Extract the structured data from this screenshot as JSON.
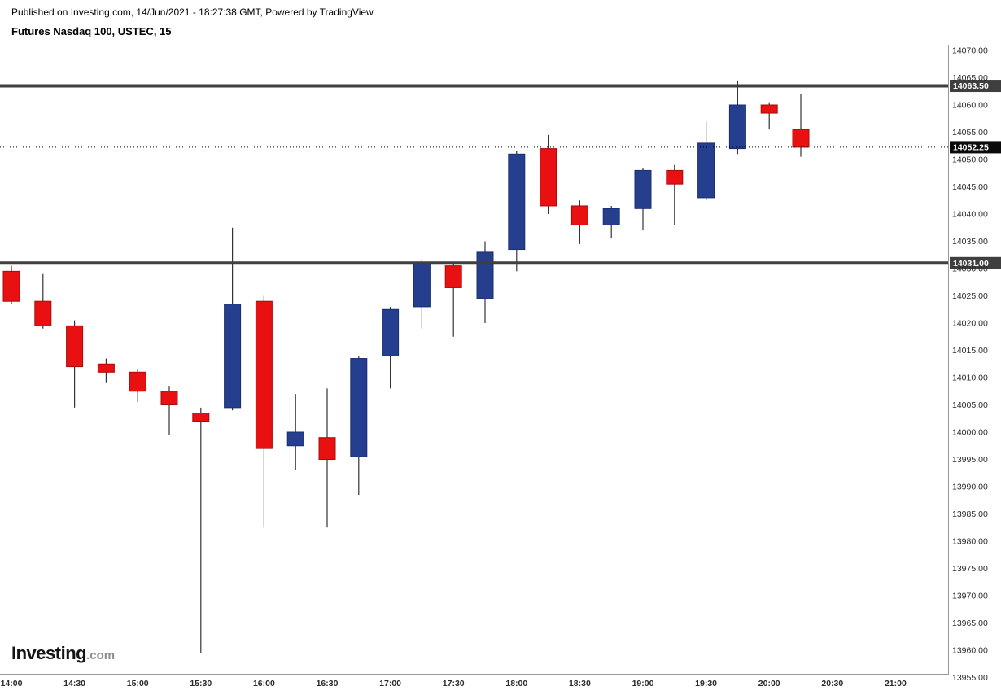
{
  "header": {
    "attribution": "Published on Investing.com, 14/Jun/2021 - 18:27:38 GMT, Powered by TradingView.",
    "instrument_title": "Futures Nasdaq 100, USTEC, 15"
  },
  "logo": {
    "name": "Investing",
    "suffix": ".com"
  },
  "colors": {
    "up": "#253e8e",
    "up_border": "#1b2f6e",
    "down": "#e81010",
    "down_border": "#a80b0b",
    "wick": "#333333",
    "hline": "#3f3f3f",
    "badge_bg": "#3f3f3f",
    "current_badge_bg": "#0a0a0a",
    "badge_text": "#ffffff",
    "axis_line": "#999999",
    "axis_text": "#2b2b2b"
  },
  "chart_data": {
    "type": "candlestick",
    "title": "Futures Nasdaq 100, USTEC, 15",
    "instrument_name": "Futures Nasdaq 100",
    "symbol": "USTEC",
    "interval": "15",
    "interval_minutes": 15,
    "y_axis": {
      "min": 13955,
      "max": 14070,
      "step": 5,
      "format_decimals": 2
    },
    "x_ticks": [
      "14:00",
      "14:30",
      "15:00",
      "15:30",
      "16:00",
      "16:30",
      "17:00",
      "17:30",
      "18:00",
      "18:30",
      "19:00",
      "19:30",
      "20:00",
      "20:30",
      "21:00"
    ],
    "horizontal_lines": [
      {
        "price": 14063.5,
        "label": "14063.50"
      },
      {
        "price": 14031.0,
        "label": "14031.00"
      }
    ],
    "current_price": {
      "price": 14052.25,
      "label": "14052.25"
    },
    "candles": [
      {
        "time": "14:00",
        "open": 14029.5,
        "high": 14030.5,
        "low": 14023.5,
        "close": 14024.0
      },
      {
        "time": "14:15",
        "open": 14024.0,
        "high": 14029.0,
        "low": 14019.0,
        "close": 14019.5
      },
      {
        "time": "14:30",
        "open": 14019.5,
        "high": 14020.5,
        "low": 14004.5,
        "close": 14012.0
      },
      {
        "time": "14:45",
        "open": 14012.5,
        "high": 14013.5,
        "low": 14009.0,
        "close": 14011.0
      },
      {
        "time": "15:00",
        "open": 14011.0,
        "high": 14011.5,
        "low": 14005.5,
        "close": 14007.5
      },
      {
        "time": "15:15",
        "open": 14007.5,
        "high": 14008.5,
        "low": 13999.5,
        "close": 14005.0
      },
      {
        "time": "15:30",
        "open": 14003.5,
        "high": 14004.5,
        "low": 13959.5,
        "close": 14002.0
      },
      {
        "time": "15:45",
        "open": 14004.5,
        "high": 14037.5,
        "low": 14004.0,
        "close": 14023.5
      },
      {
        "time": "16:00",
        "open": 14024.0,
        "high": 14025.0,
        "low": 13982.5,
        "close": 13997.0
      },
      {
        "time": "16:15",
        "open": 13997.5,
        "high": 14007.0,
        "low": 13993.0,
        "close": 14000.0
      },
      {
        "time": "16:30",
        "open": 13999.0,
        "high": 14008.0,
        "low": 13982.5,
        "close": 13995.0
      },
      {
        "time": "16:45",
        "open": 13995.5,
        "high": 14014.0,
        "low": 13988.5,
        "close": 14013.5
      },
      {
        "time": "17:00",
        "open": 14014.0,
        "high": 14023.0,
        "low": 14008.0,
        "close": 14022.5
      },
      {
        "time": "17:15",
        "open": 14023.0,
        "high": 14031.5,
        "low": 14019.0,
        "close": 14031.0
      },
      {
        "time": "17:30",
        "open": 14030.5,
        "high": 14031.0,
        "low": 14017.5,
        "close": 14026.5
      },
      {
        "time": "17:45",
        "open": 14024.5,
        "high": 14035.0,
        "low": 14020.0,
        "close": 14033.0
      },
      {
        "time": "18:00",
        "open": 14033.5,
        "high": 14051.5,
        "low": 14029.5,
        "close": 14051.0
      },
      {
        "time": "18:15",
        "open": 14052.0,
        "high": 14054.5,
        "low": 14040.0,
        "close": 14041.5
      },
      {
        "time": "18:30",
        "open": 14041.5,
        "high": 14042.5,
        "low": 14034.5,
        "close": 14038.0
      },
      {
        "time": "18:45",
        "open": 14038.0,
        "high": 14041.5,
        "low": 14035.5,
        "close": 14041.0
      },
      {
        "time": "19:00",
        "open": 14041.0,
        "high": 14048.5,
        "low": 14037.0,
        "close": 14048.0
      },
      {
        "time": "19:15",
        "open": 14048.0,
        "high": 14049.0,
        "low": 14038.0,
        "close": 14045.5
      },
      {
        "time": "19:30",
        "open": 14043.0,
        "high": 14057.0,
        "low": 14042.5,
        "close": 14053.0
      },
      {
        "time": "19:45",
        "open": 14052.0,
        "high": 14064.5,
        "low": 14051.0,
        "close": 14060.0
      },
      {
        "time": "20:00",
        "open": 14060.0,
        "high": 14060.5,
        "low": 14055.5,
        "close": 14058.5
      },
      {
        "time": "20:15",
        "open": 14055.5,
        "high": 14062.0,
        "low": 14050.5,
        "close": 14052.25
      }
    ]
  }
}
